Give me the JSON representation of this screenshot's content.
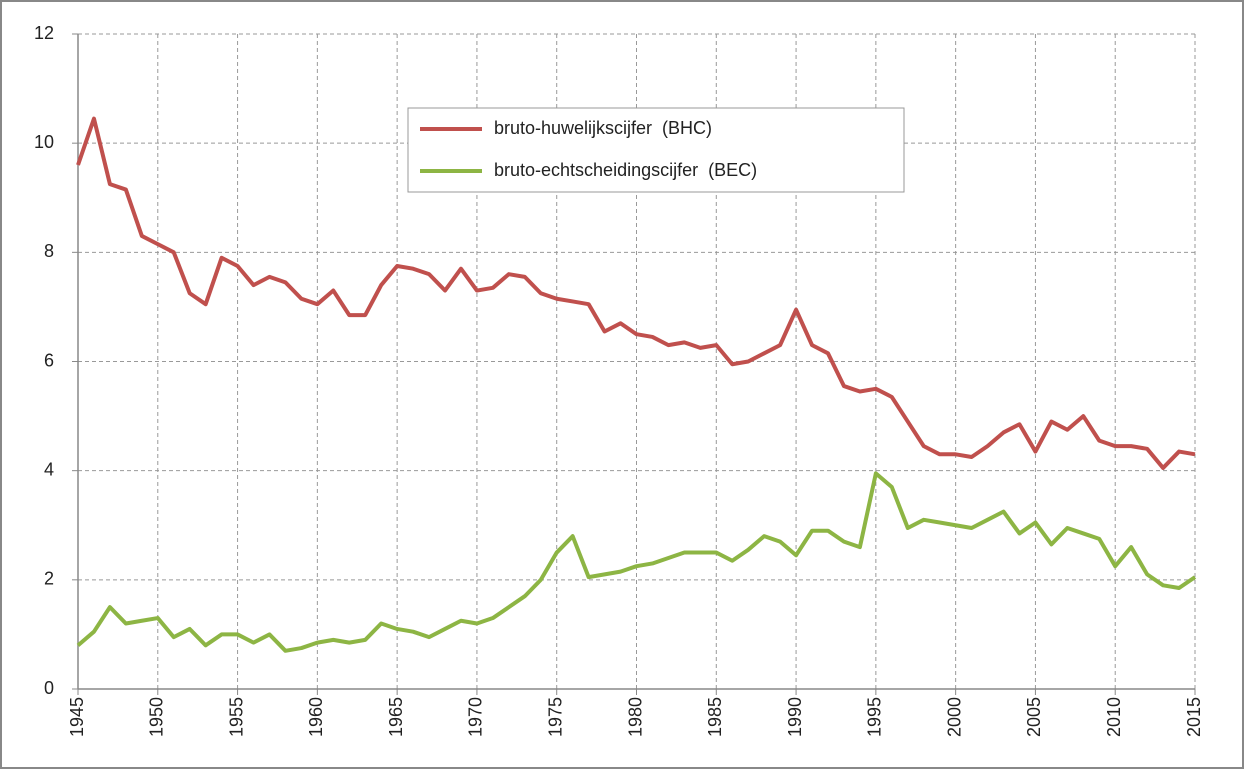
{
  "chart_data": {
    "type": "line",
    "x": [
      1945,
      1946,
      1947,
      1948,
      1949,
      1950,
      1951,
      1952,
      1953,
      1954,
      1955,
      1956,
      1957,
      1958,
      1959,
      1960,
      1961,
      1962,
      1963,
      1964,
      1965,
      1966,
      1967,
      1968,
      1969,
      1970,
      1971,
      1972,
      1973,
      1974,
      1975,
      1976,
      1977,
      1978,
      1979,
      1980,
      1981,
      1982,
      1983,
      1984,
      1985,
      1986,
      1987,
      1988,
      1989,
      1990,
      1991,
      1992,
      1993,
      1994,
      1995,
      1996,
      1997,
      1998,
      1999,
      2000,
      2001,
      2002,
      2003,
      2004,
      2005,
      2006,
      2007,
      2008,
      2009,
      2010,
      2011,
      2012,
      2013,
      2014,
      2015
    ],
    "series": [
      {
        "name": "bruto-huwelijkscijfer  (BHC)",
        "color": "#c0504d",
        "values": [
          9.6,
          10.45,
          9.25,
          9.15,
          8.3,
          8.15,
          8.0,
          7.25,
          7.05,
          7.9,
          7.75,
          7.4,
          7.55,
          7.45,
          7.15,
          7.05,
          7.3,
          6.85,
          6.85,
          7.4,
          7.75,
          7.7,
          7.6,
          7.3,
          7.7,
          7.3,
          7.35,
          7.6,
          7.55,
          7.25,
          7.15,
          7.1,
          7.05,
          6.55,
          6.7,
          6.5,
          6.45,
          6.3,
          6.35,
          6.25,
          6.3,
          5.95,
          6.0,
          6.15,
          6.3,
          6.95,
          6.3,
          6.15,
          5.55,
          5.45,
          5.5,
          5.35,
          4.9,
          4.45,
          4.3,
          4.3,
          4.25,
          4.45,
          4.7,
          4.85,
          4.35,
          4.9,
          4.75,
          5.0,
          4.55,
          4.45,
          4.45,
          4.4,
          4.05,
          4.35,
          4.3
        ]
      },
      {
        "name": "bruto-echtscheidingscijfer  (BEC)",
        "color": "#8db544",
        "values": [
          0.8,
          1.05,
          1.5,
          1.2,
          1.25,
          1.3,
          0.95,
          1.1,
          0.8,
          1.0,
          1.0,
          0.85,
          1.0,
          0.7,
          0.75,
          0.85,
          0.9,
          0.85,
          0.9,
          1.2,
          1.1,
          1.05,
          0.95,
          1.1,
          1.25,
          1.2,
          1.3,
          1.5,
          1.7,
          2.0,
          2.5,
          2.8,
          2.05,
          2.1,
          2.15,
          2.25,
          2.3,
          2.4,
          2.5,
          2.5,
          2.5,
          2.35,
          2.55,
          2.8,
          2.7,
          2.45,
          2.9,
          2.9,
          2.7,
          2.6,
          3.95,
          3.7,
          2.95,
          3.1,
          3.05,
          3.0,
          2.95,
          3.1,
          3.25,
          2.85,
          3.05,
          2.65,
          2.95,
          2.85,
          2.75,
          2.25,
          2.6,
          2.1,
          1.9,
          1.85,
          2.05
        ]
      }
    ],
    "xlim": [
      1945,
      2015
    ],
    "xticks": [
      1945,
      1950,
      1955,
      1960,
      1965,
      1970,
      1975,
      1980,
      1985,
      1990,
      1995,
      2000,
      2005,
      2010,
      2015
    ],
    "ylim": [
      0,
      12
    ],
    "yticks": [
      0,
      2,
      4,
      6,
      8,
      10,
      12
    ],
    "grid": true
  }
}
